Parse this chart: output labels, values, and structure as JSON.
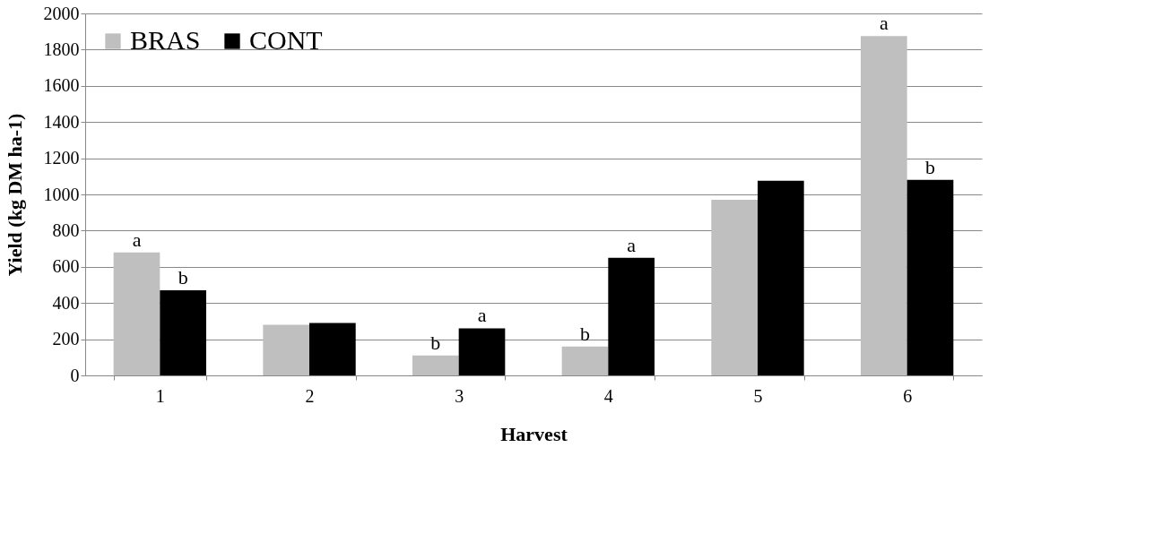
{
  "chart_data": {
    "type": "bar",
    "xlabel": "Harvest",
    "ylabel": "Yield (kg DM ha-1)",
    "categories": [
      "1",
      "2",
      "3",
      "4",
      "5",
      "6"
    ],
    "series": [
      {
        "name": "BRAS",
        "color": "#bfbfbf",
        "values": [
          680,
          280,
          110,
          160,
          970,
          1875
        ]
      },
      {
        "name": "CONT",
        "color": "#000000",
        "values": [
          470,
          290,
          260,
          650,
          1075,
          1080
        ]
      }
    ],
    "ylim": [
      0,
      2000
    ],
    "yticks": [
      0,
      200,
      400,
      600,
      800,
      1000,
      1200,
      1400,
      1600,
      1800,
      2000
    ],
    "grid": "y",
    "legend": "top left",
    "annotations": [
      {
        "text": "a",
        "x": "1",
        "y": 680
      },
      {
        "text": "b",
        "x": "1",
        "y": 470
      },
      {
        "text": "b",
        "x": "3",
        "y": 110
      },
      {
        "text": "a",
        "x": "3",
        "y": 260
      },
      {
        "text": "b",
        "x": "4",
        "y": 160
      },
      {
        "text": "a",
        "x": "4",
        "y": 650
      },
      {
        "text": "a",
        "x": "6",
        "y": 1875
      },
      {
        "text": "b",
        "x": "6",
        "y": 1080
      }
    ]
  }
}
